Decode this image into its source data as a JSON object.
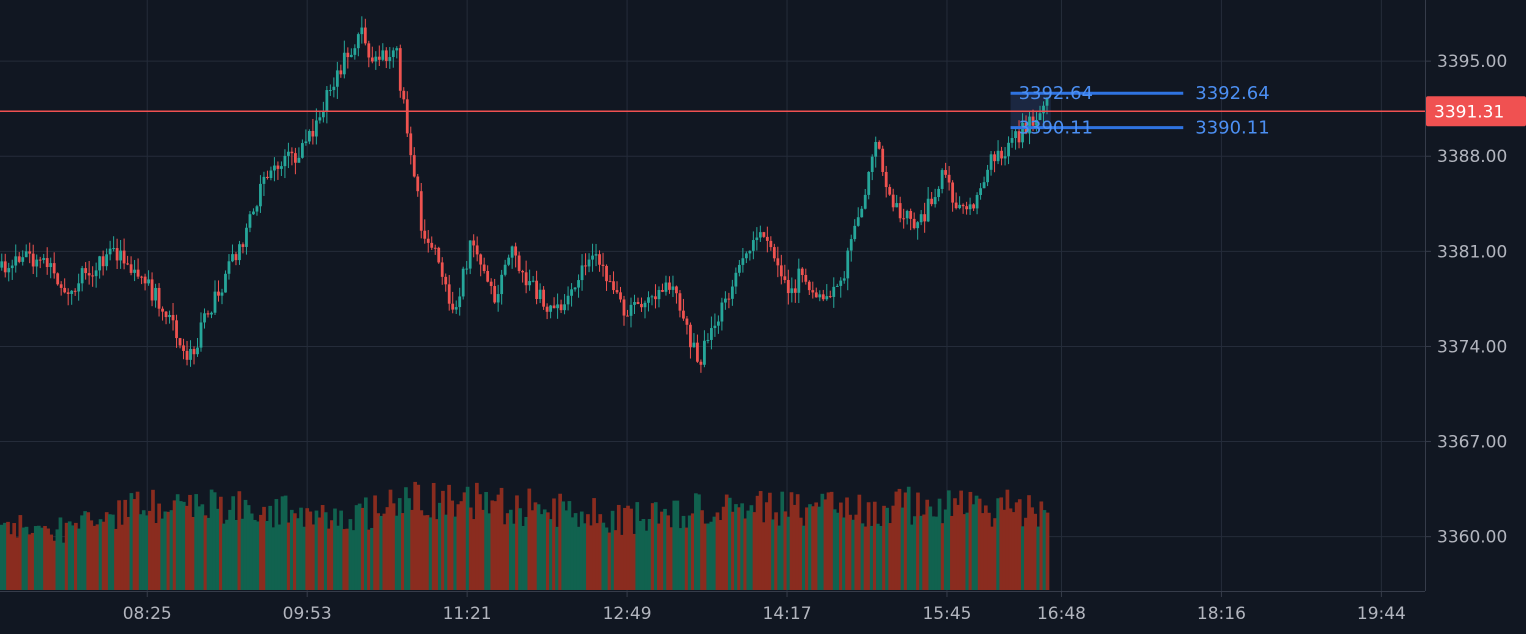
{
  "colors": {
    "background": "#111722",
    "grid": "#252c3a",
    "axis_line": "#363c4a",
    "axis_text": "#b2b5be",
    "up": "#26a69a",
    "down": "#ef5350",
    "volume_up": "#11624f",
    "volume_down": "#8a2c1f",
    "current_price_line": "#f05151",
    "current_price_tag": "#f05151",
    "level_line": "#2f74e2",
    "level_text": "#4c8ff2",
    "level_zone": "#1d2a47"
  },
  "chart_data": {
    "type": "candlestick",
    "y_axis": {
      "ticks": [
        "3395.00",
        "3388.00",
        "3381.00",
        "3374.00",
        "3367.00",
        "3360.00"
      ],
      "tick_values": [
        3395,
        3388,
        3381,
        3374,
        3367,
        3360
      ],
      "range": [
        3356.0,
        3399.5
      ],
      "position": "right"
    },
    "x_axis": {
      "ticks": [
        "08:25",
        "09:53",
        "11:21",
        "12:49",
        "14:17",
        "15:45",
        "16:48",
        "18:16",
        "19:44"
      ],
      "tick_minutes": [
        505,
        593,
        681,
        769,
        857,
        945,
        1008,
        1096,
        1184
      ],
      "range_minutes": [
        424,
        1208
      ]
    },
    "current_price": {
      "value": 3391.31,
      "label": "3391.31"
    },
    "levels": [
      {
        "value": 3392.64,
        "label": "3392.64"
      },
      {
        "value": 3390.11,
        "label": "3390.11"
      }
    ],
    "level_zone": {
      "start_minute": 980,
      "end_minute": 1075
    },
    "last_bar_minute": 1001,
    "price_path": {
      "minutes": [
        424,
        445,
        460,
        487,
        508,
        528,
        544,
        557,
        572,
        590,
        613,
        623,
        629,
        642,
        650,
        656,
        666,
        674,
        683,
        697,
        705,
        714,
        730,
        748,
        754,
        769,
        788,
        796,
        808,
        829,
        843,
        860,
        864,
        876,
        889,
        906,
        915,
        928,
        934,
        943,
        952,
        960,
        968,
        984,
        993,
        1001
      ],
      "prices": [
        3379.8,
        3380.6,
        3378.2,
        3380.9,
        3378.0,
        3373.2,
        3378.0,
        3381.5,
        3387.3,
        3388.4,
        3394.9,
        3396.8,
        3395.5,
        3395.6,
        3388.0,
        3383.0,
        3380.2,
        3376.0,
        3381.7,
        3377.5,
        3381.1,
        3378.9,
        3376.3,
        3380.8,
        3380.0,
        3376.2,
        3378.2,
        3377.6,
        3372.7,
        3379.2,
        3382.3,
        3377.9,
        3379.4,
        3377.0,
        3379.8,
        3388.6,
        3384.8,
        3382.4,
        3384.1,
        3386.8,
        3383.9,
        3384.9,
        3387.4,
        3389.6,
        3391.0,
        3392.5
      ]
    },
    "volume": {
      "bar_count": 340,
      "relative_levels": {
        "minutes": [
          424,
          460,
          500,
          560,
          610,
          660,
          720,
          770,
          820,
          870,
          920,
          960,
          1001
        ],
        "levels": [
          0.55,
          0.5,
          0.7,
          0.72,
          0.6,
          0.78,
          0.7,
          0.6,
          0.72,
          0.68,
          0.72,
          0.7,
          0.7
        ]
      }
    }
  }
}
